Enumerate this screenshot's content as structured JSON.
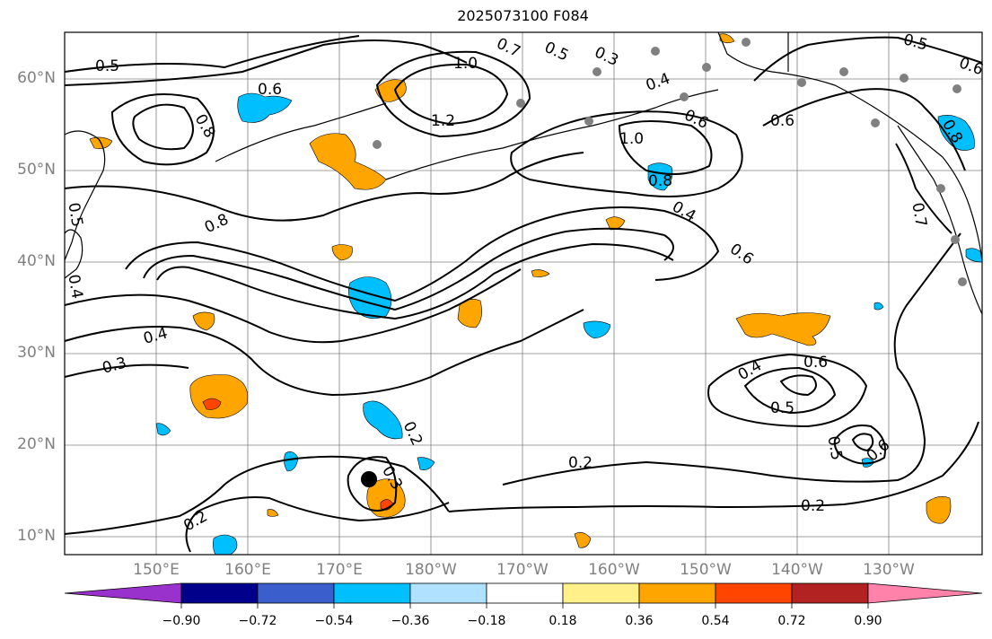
{
  "title": "2025073100 F084",
  "map": {
    "lat_labels": [
      "60°N",
      "50°N",
      "40°N",
      "30°N",
      "20°N",
      "10°N"
    ],
    "lon_labels": [
      "150°E",
      "160°E",
      "170°E",
      "180°W",
      "170°W",
      "160°W",
      "150°W",
      "140°W",
      "130°W"
    ],
    "contour_labels": [
      "0.5",
      "0.6",
      "0.8",
      "1.0",
      "1.2",
      "0.7",
      "0.5",
      "0.3",
      "0.4",
      "0.6",
      "0.6",
      "1.0",
      "0.8",
      "0.4",
      "0.6",
      "0.8",
      "0.4",
      "0.3",
      "0.4",
      "0.6",
      "0.5",
      "0.5",
      "0.6",
      "0.2",
      "0.3",
      "0.2",
      "0.2",
      "0.2",
      "0.5",
      "0.6",
      "0.7",
      "0.8",
      "0.5",
      "0.4"
    ],
    "colors": {
      "land": "#000000",
      "grid": "#808080",
      "contour": "#000000",
      "dot": "#808080"
    }
  },
  "colorbar": {
    "tick_labels": [
      "−0.90",
      "−0.72",
      "−0.54",
      "−0.36",
      "−0.18",
      "0.18",
      "0.36",
      "0.54",
      "0.72",
      "0.90"
    ],
    "colors": [
      "#9932cc",
      "#00008b",
      "#3a5fcd",
      "#00bfff",
      "#b0e2ff",
      "#ffffff",
      "#fff08a",
      "#ffa500",
      "#ff4500",
      "#b22222",
      "#ff82ab"
    ]
  }
}
